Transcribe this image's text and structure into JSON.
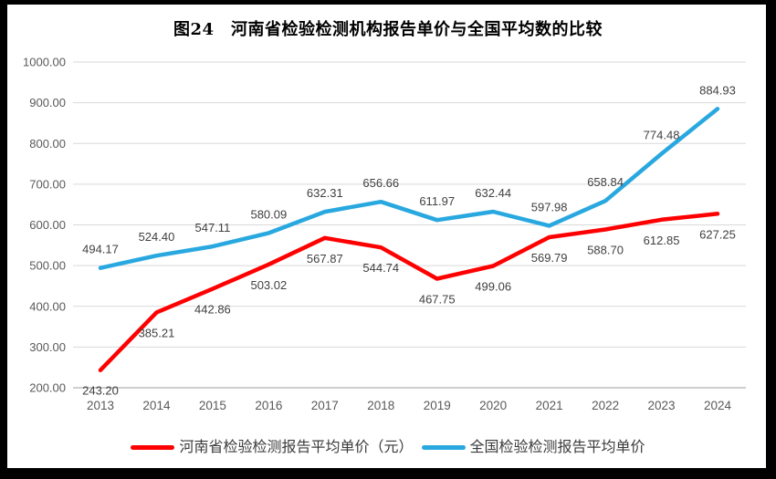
{
  "figure": {
    "title": "图24　河南省检验检测机构报告单价与全国平均数的比较"
  },
  "colors": {
    "henan_series": "#FF0000",
    "national_series": "#29A8E0",
    "gridline": "#D9D9D9",
    "axis_line": "#BFBFBF",
    "tick_label": "#595959",
    "data_label": "#404040",
    "frame": "#000000",
    "background": "#FFFFFF"
  },
  "chart_data": {
    "type": "line",
    "title": "图24　河南省检验检测机构报告单价与全国平均数的比较",
    "x": [
      "2013",
      "2014",
      "2015",
      "2016",
      "2017",
      "2018",
      "2019",
      "2020",
      "2021",
      "2022",
      "2023",
      "2024"
    ],
    "series": [
      {
        "id": "henan",
        "name": "河南省检验检测报告平均单价（元）",
        "color": "#FF0000",
        "label_placement": "below",
        "values": [
          243.2,
          385.21,
          442.86,
          503.02,
          567.87,
          544.74,
          467.75,
          499.06,
          569.79,
          588.7,
          612.85,
          627.25
        ]
      },
      {
        "id": "national",
        "name": "全国检验检测报告平均单价",
        "color": "#29A8E0",
        "label_placement": "above",
        "values": [
          494.17,
          524.4,
          547.11,
          580.09,
          632.31,
          656.66,
          611.97,
          632.44,
          597.98,
          658.84,
          774.48,
          884.93
        ]
      }
    ],
    "xlabel": "",
    "ylabel": "",
    "ylim": [
      200,
      1000
    ],
    "ytick_step": 100,
    "ytick_decimals": 2,
    "grid": true,
    "data_labels_shown": true,
    "legend_position": "bottom"
  }
}
